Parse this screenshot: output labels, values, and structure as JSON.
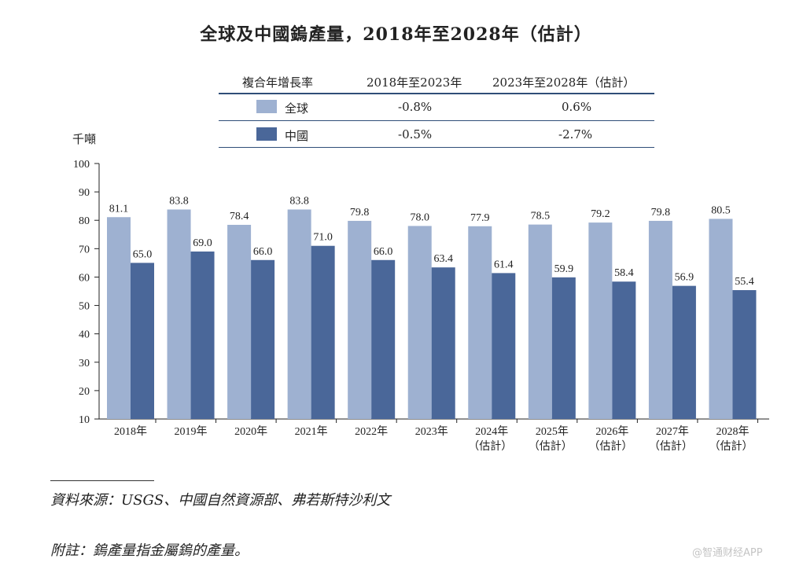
{
  "title": "全球及中國鎢產量，2018年至2028年（估計）",
  "cagr_table": {
    "header": [
      "複合年增長率",
      "2018年至2023年",
      "2023年至2028年（估計）"
    ],
    "rows": [
      {
        "name": "全球",
        "cagr_2018_2023": "-0.8%",
        "cagr_2023_2028": "0.6%"
      },
      {
        "name": "中國",
        "cagr_2018_2023": "-0.5%",
        "cagr_2023_2028": "-2.7%"
      }
    ]
  },
  "y_unit": "千噸",
  "chart_data": {
    "type": "bar",
    "title": "全球及中國鎢產量，2018年至2028年（估計）",
    "ylabel": "千噸",
    "xlabel": "",
    "ylim": [
      10,
      100
    ],
    "yticks": [
      10,
      20,
      30,
      40,
      50,
      60,
      70,
      80,
      90,
      100
    ],
    "categories": [
      "2018年",
      "2019年",
      "2020年",
      "2021年",
      "2022年",
      "2023年",
      "2024年",
      "2025年",
      "2026年",
      "2027年",
      "2028年"
    ],
    "category_notes": [
      "",
      "",
      "",
      "",
      "",
      "",
      "（估計）",
      "（估計）",
      "（估計）",
      "（估計）",
      "（估計）"
    ],
    "series": [
      {
        "name": "全球",
        "color": "#9eb1d1",
        "values": [
          81.1,
          83.8,
          78.4,
          83.8,
          79.8,
          78.0,
          77.9,
          78.5,
          79.2,
          79.8,
          80.5
        ]
      },
      {
        "name": "中國",
        "color": "#4a6799",
        "values": [
          65.0,
          69.0,
          66.0,
          71.0,
          66.0,
          63.4,
          61.4,
          59.9,
          58.4,
          56.9,
          55.4
        ]
      }
    ],
    "value_labels": [
      [
        "81.1",
        "83.8",
        "78.4",
        "83.8",
        "79.8",
        "78.0",
        "77.9",
        "78.5",
        "79.2",
        "79.8",
        "80.5"
      ],
      [
        "65.0",
        "69.0",
        "66.0",
        "71.0",
        "66.0",
        "63.4",
        "61.4",
        "59.9",
        "58.4",
        "56.9",
        "55.4"
      ]
    ],
    "grid": false
  },
  "source": "資料來源：USGS、中國自然資源部、弗若斯特沙利文",
  "note": "附註：鎢產量指金屬鎢的產量。",
  "watermark": "@智通财经APP"
}
